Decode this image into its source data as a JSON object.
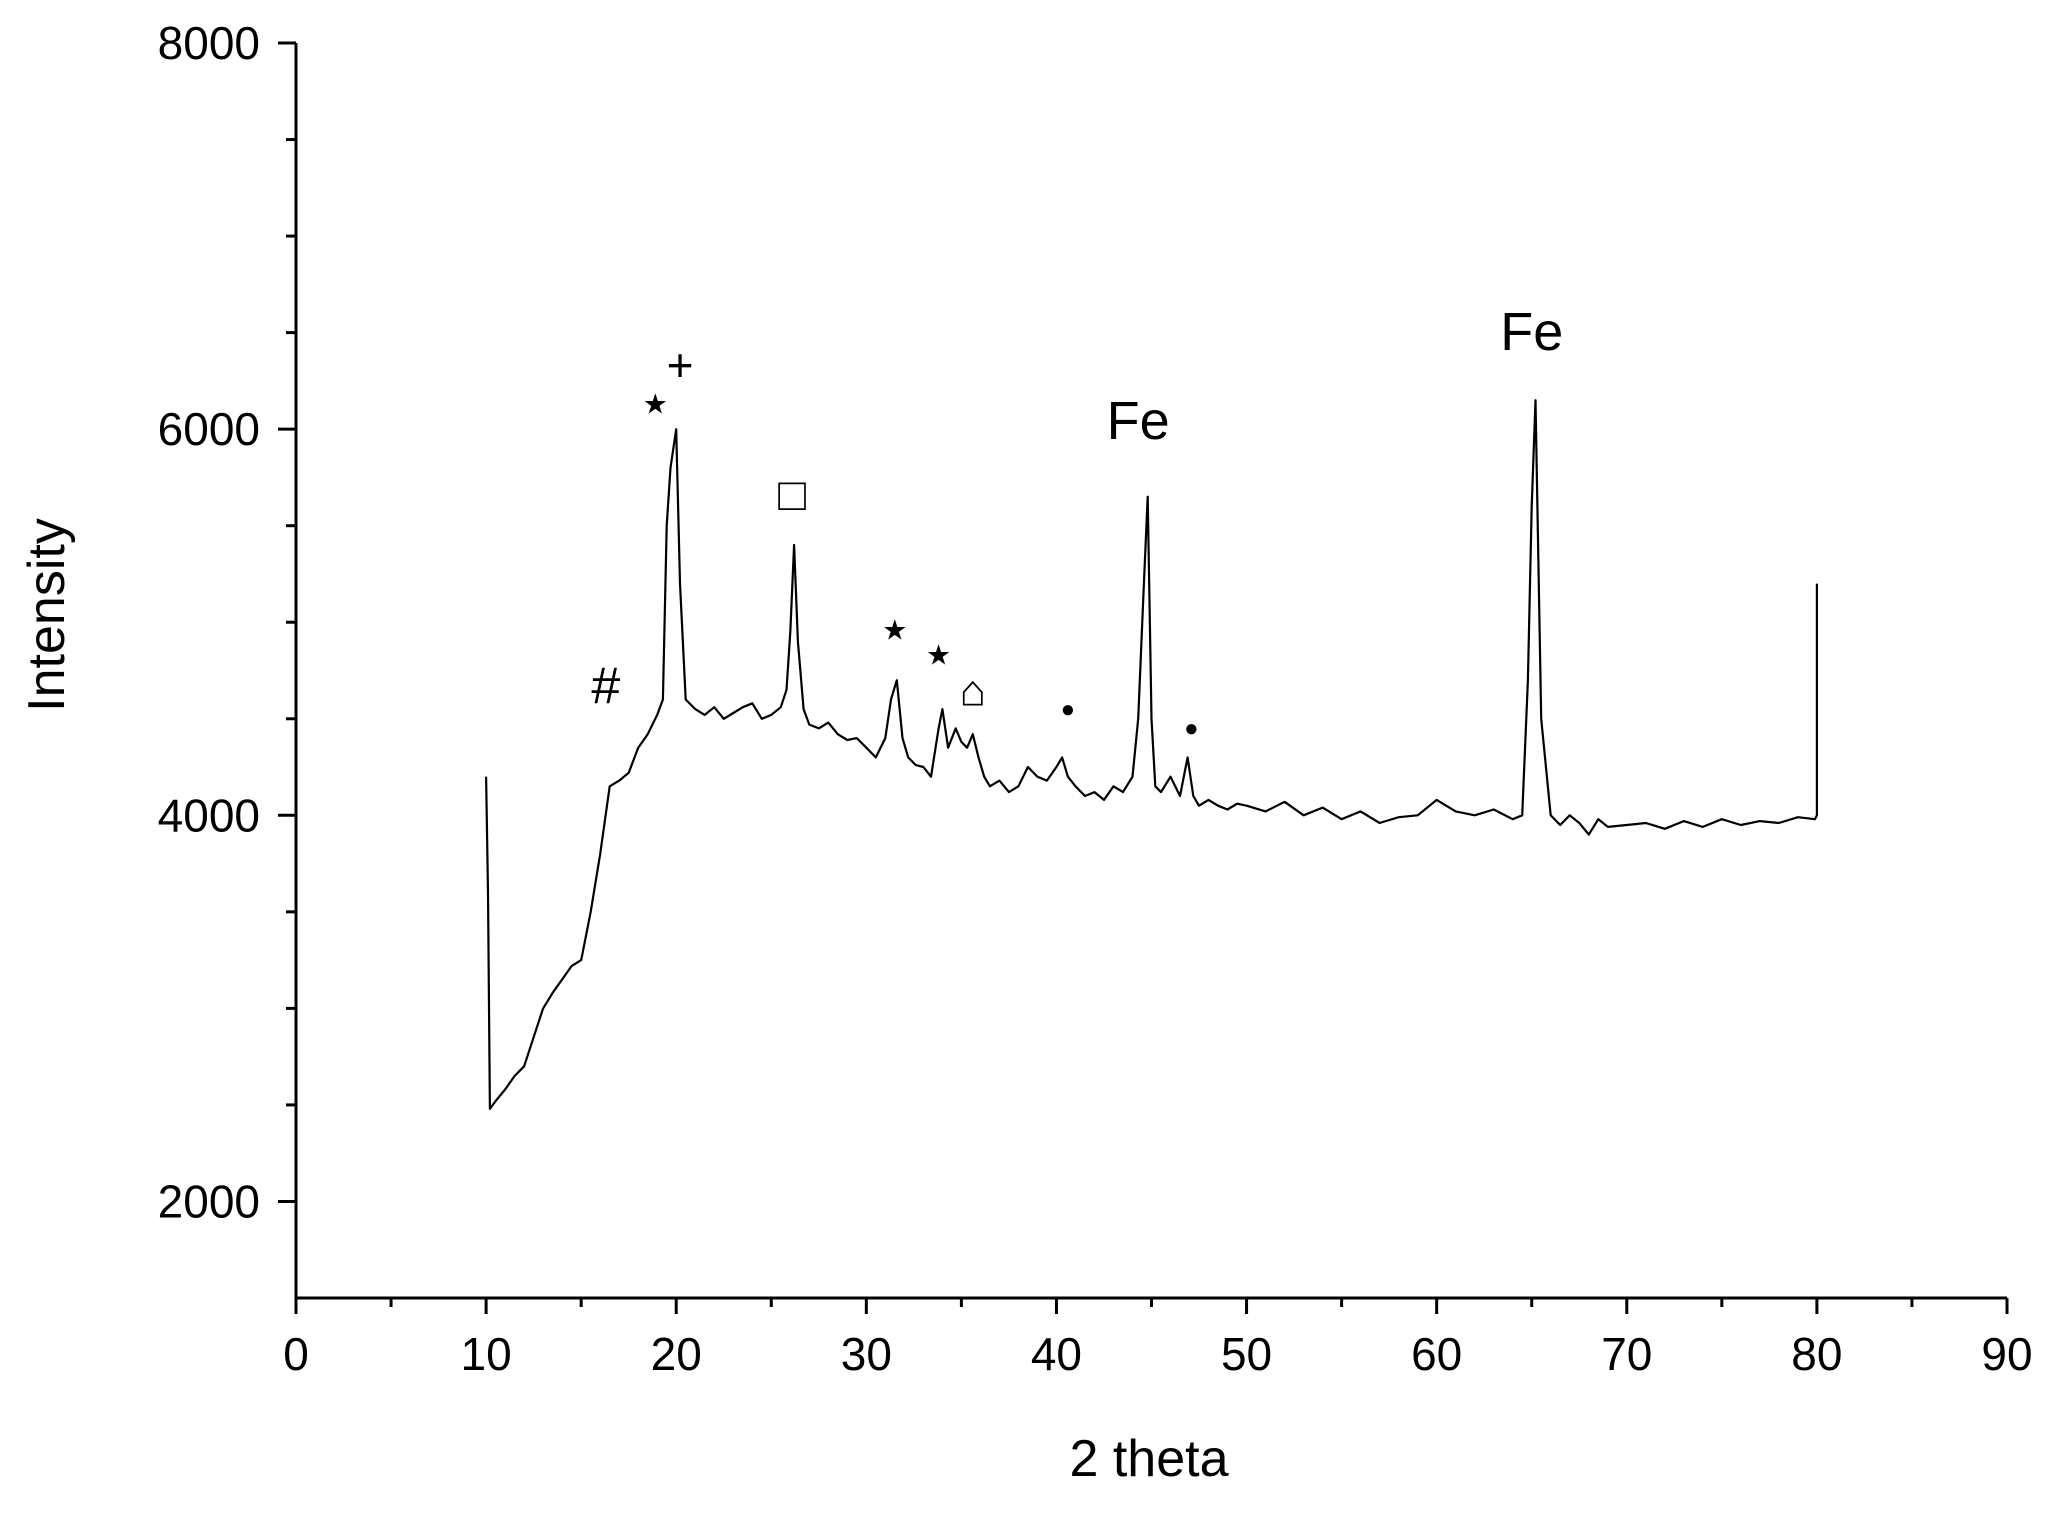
{
  "chart_data": {
    "type": "line",
    "title": "",
    "xlabel": "2 theta",
    "ylabel": "Intensity",
    "xlim": [
      0,
      90
    ],
    "ylim": [
      1500,
      8000
    ],
    "xticks": [
      0,
      10,
      20,
      30,
      40,
      50,
      60,
      70,
      80,
      90
    ],
    "yticks": [
      2000,
      4000,
      6000,
      8000
    ],
    "grid": false,
    "legend": "none",
    "line_color": "#000000",
    "series": [
      {
        "x": [
          10.0,
          10.1,
          10.2,
          10.5,
          11.0,
          11.5,
          12.0,
          12.5,
          13.0,
          13.5,
          14.0,
          14.5,
          15.0,
          15.5,
          16.0,
          16.5,
          17.0,
          17.5,
          18.0,
          18.5,
          19.0,
          19.3,
          19.5,
          19.7,
          20.0,
          20.2,
          20.5,
          21.0,
          21.5,
          22.0,
          22.5,
          23.0,
          23.5,
          24.0,
          24.5,
          25.0,
          25.5,
          25.8,
          26.0,
          26.2,
          26.4,
          26.7,
          27.0,
          27.5,
          28.0,
          28.5,
          29.0,
          29.5,
          30.0,
          30.5,
          31.0,
          31.3,
          31.6,
          31.9,
          32.2,
          32.6,
          33.0,
          33.4,
          33.8,
          34.0,
          34.3,
          34.7,
          35.0,
          35.3,
          35.6,
          35.9,
          36.2,
          36.5,
          37.0,
          37.5,
          38.0,
          38.5,
          39.0,
          39.5,
          40.0,
          40.3,
          40.6,
          41.0,
          41.5,
          42.0,
          42.5,
          43.0,
          43.5,
          44.0,
          44.3,
          44.6,
          44.8,
          45.0,
          45.2,
          45.5,
          46.0,
          46.5,
          46.9,
          47.2,
          47.5,
          48.0,
          48.5,
          49.0,
          49.5,
          50.0,
          51.0,
          52.0,
          53.0,
          54.0,
          55.0,
          56.0,
          57.0,
          58.0,
          59.0,
          60.0,
          61.0,
          62.0,
          63.0,
          64.0,
          64.5,
          64.8,
          65.0,
          65.2,
          65.5,
          66.0,
          66.5,
          67.0,
          67.5,
          68.0,
          68.5,
          69.0,
          70.0,
          71.0,
          72.0,
          73.0,
          74.0,
          75.0,
          76.0,
          77.0,
          78.0,
          79.0,
          79.9,
          80.0,
          80.0
        ],
        "y": [
          4200,
          3600,
          2480,
          2520,
          2580,
          2650,
          2700,
          2850,
          3000,
          3080,
          3150,
          3220,
          3250,
          3500,
          3800,
          4150,
          4180,
          4220,
          4350,
          4420,
          4520,
          4600,
          5500,
          5800,
          6000,
          5200,
          4600,
          4550,
          4520,
          4560,
          4500,
          4530,
          4560,
          4580,
          4500,
          4520,
          4560,
          4650,
          4950,
          5400,
          4900,
          4550,
          4470,
          4450,
          4480,
          4420,
          4390,
          4400,
          4350,
          4300,
          4400,
          4600,
          4700,
          4400,
          4300,
          4260,
          4250,
          4200,
          4450,
          4550,
          4350,
          4450,
          4380,
          4350,
          4420,
          4300,
          4200,
          4150,
          4180,
          4120,
          4150,
          4250,
          4200,
          4180,
          4250,
          4300,
          4200,
          4150,
          4100,
          4120,
          4080,
          4150,
          4120,
          4200,
          4500,
          5200,
          5650,
          4500,
          4150,
          4120,
          4200,
          4100,
          4300,
          4100,
          4050,
          4080,
          4050,
          4030,
          4060,
          4050,
          4020,
          4070,
          4000,
          4040,
          3980,
          4020,
          3960,
          3990,
          4000,
          4080,
          4020,
          4000,
          4030,
          3980,
          4000,
          4700,
          5600,
          6150,
          4500,
          4000,
          3950,
          4000,
          3960,
          3900,
          3980,
          3940,
          3950,
          3960,
          3930,
          3970,
          3940,
          3980,
          3950,
          3970,
          3960,
          3990,
          3980,
          4000,
          5200
        ]
      }
    ],
    "annotations": [
      {
        "label": "#",
        "x": 16.3,
        "y": 4580,
        "kind": "text"
      },
      {
        "label": "★",
        "x": 18.9,
        "y": 6080,
        "kind": "text"
      },
      {
        "label": "+",
        "x": 20.2,
        "y": 6250,
        "kind": "text"
      },
      {
        "label": "□",
        "x": 26.1,
        "y": 5580,
        "kind": "text"
      },
      {
        "label": "★",
        "x": 31.5,
        "y": 4910,
        "kind": "text"
      },
      {
        "label": "★",
        "x": 33.8,
        "y": 4780,
        "kind": "text"
      },
      {
        "label": "⌂",
        "x": 35.6,
        "y": 4570,
        "kind": "text"
      },
      {
        "label": "●",
        "x": 40.6,
        "y": 4510,
        "kind": "text"
      },
      {
        "label": "Fe",
        "x": 44.3,
        "y": 5950,
        "kind": "text"
      },
      {
        "label": "●",
        "x": 47.1,
        "y": 4410,
        "kind": "text"
      },
      {
        "label": "Fe",
        "x": 65.0,
        "y": 6410,
        "kind": "text"
      }
    ]
  }
}
